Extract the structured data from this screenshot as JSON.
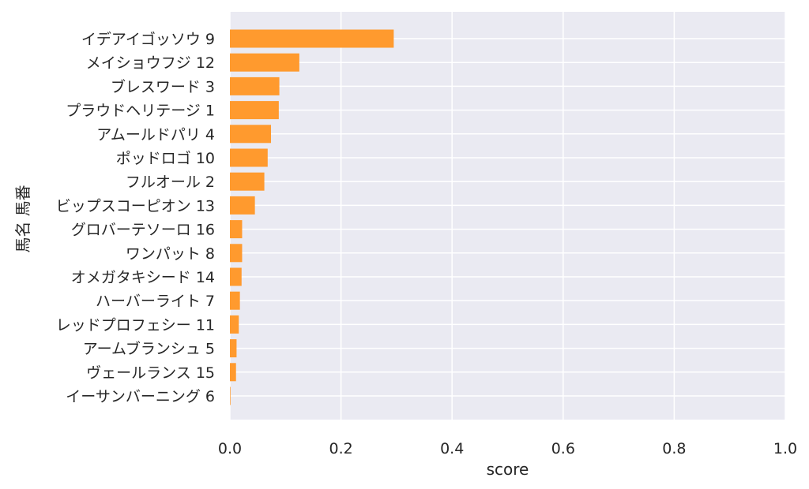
{
  "chart_data": {
    "type": "bar",
    "orientation": "horizontal",
    "xlabel": "score",
    "ylabel": "馬名 馬番",
    "xlim": [
      0,
      1.0
    ],
    "x_ticks": [
      "0.0",
      "0.2",
      "0.4",
      "0.6",
      "0.8",
      "1.0"
    ],
    "grid": true,
    "categories": [
      "イデアイゴッソウ 9",
      "メイショウフジ 12",
      "ブレスワード 3",
      "プラウドヘリテージ 1",
      "アムールドパリ 4",
      "ポッドロゴ 10",
      "フルオール 2",
      "ビップスコーピオン 13",
      "グロバーテソーロ 16",
      "ワンパット 8",
      "オメガタキシード 14",
      "ハーバーライト 7",
      "レッドプロフェシー 11",
      "アームブランシュ 5",
      "ヴェールランス 15",
      "イーサンバーニング 6"
    ],
    "values": [
      0.295,
      0.125,
      0.089,
      0.088,
      0.074,
      0.068,
      0.062,
      0.045,
      0.022,
      0.022,
      0.021,
      0.018,
      0.016,
      0.012,
      0.011,
      0.001
    ],
    "colors": {
      "bar": "#ff9a2e",
      "plot_bg": "#eaeaf2",
      "grid": "#ffffff",
      "text": "#262626"
    }
  }
}
